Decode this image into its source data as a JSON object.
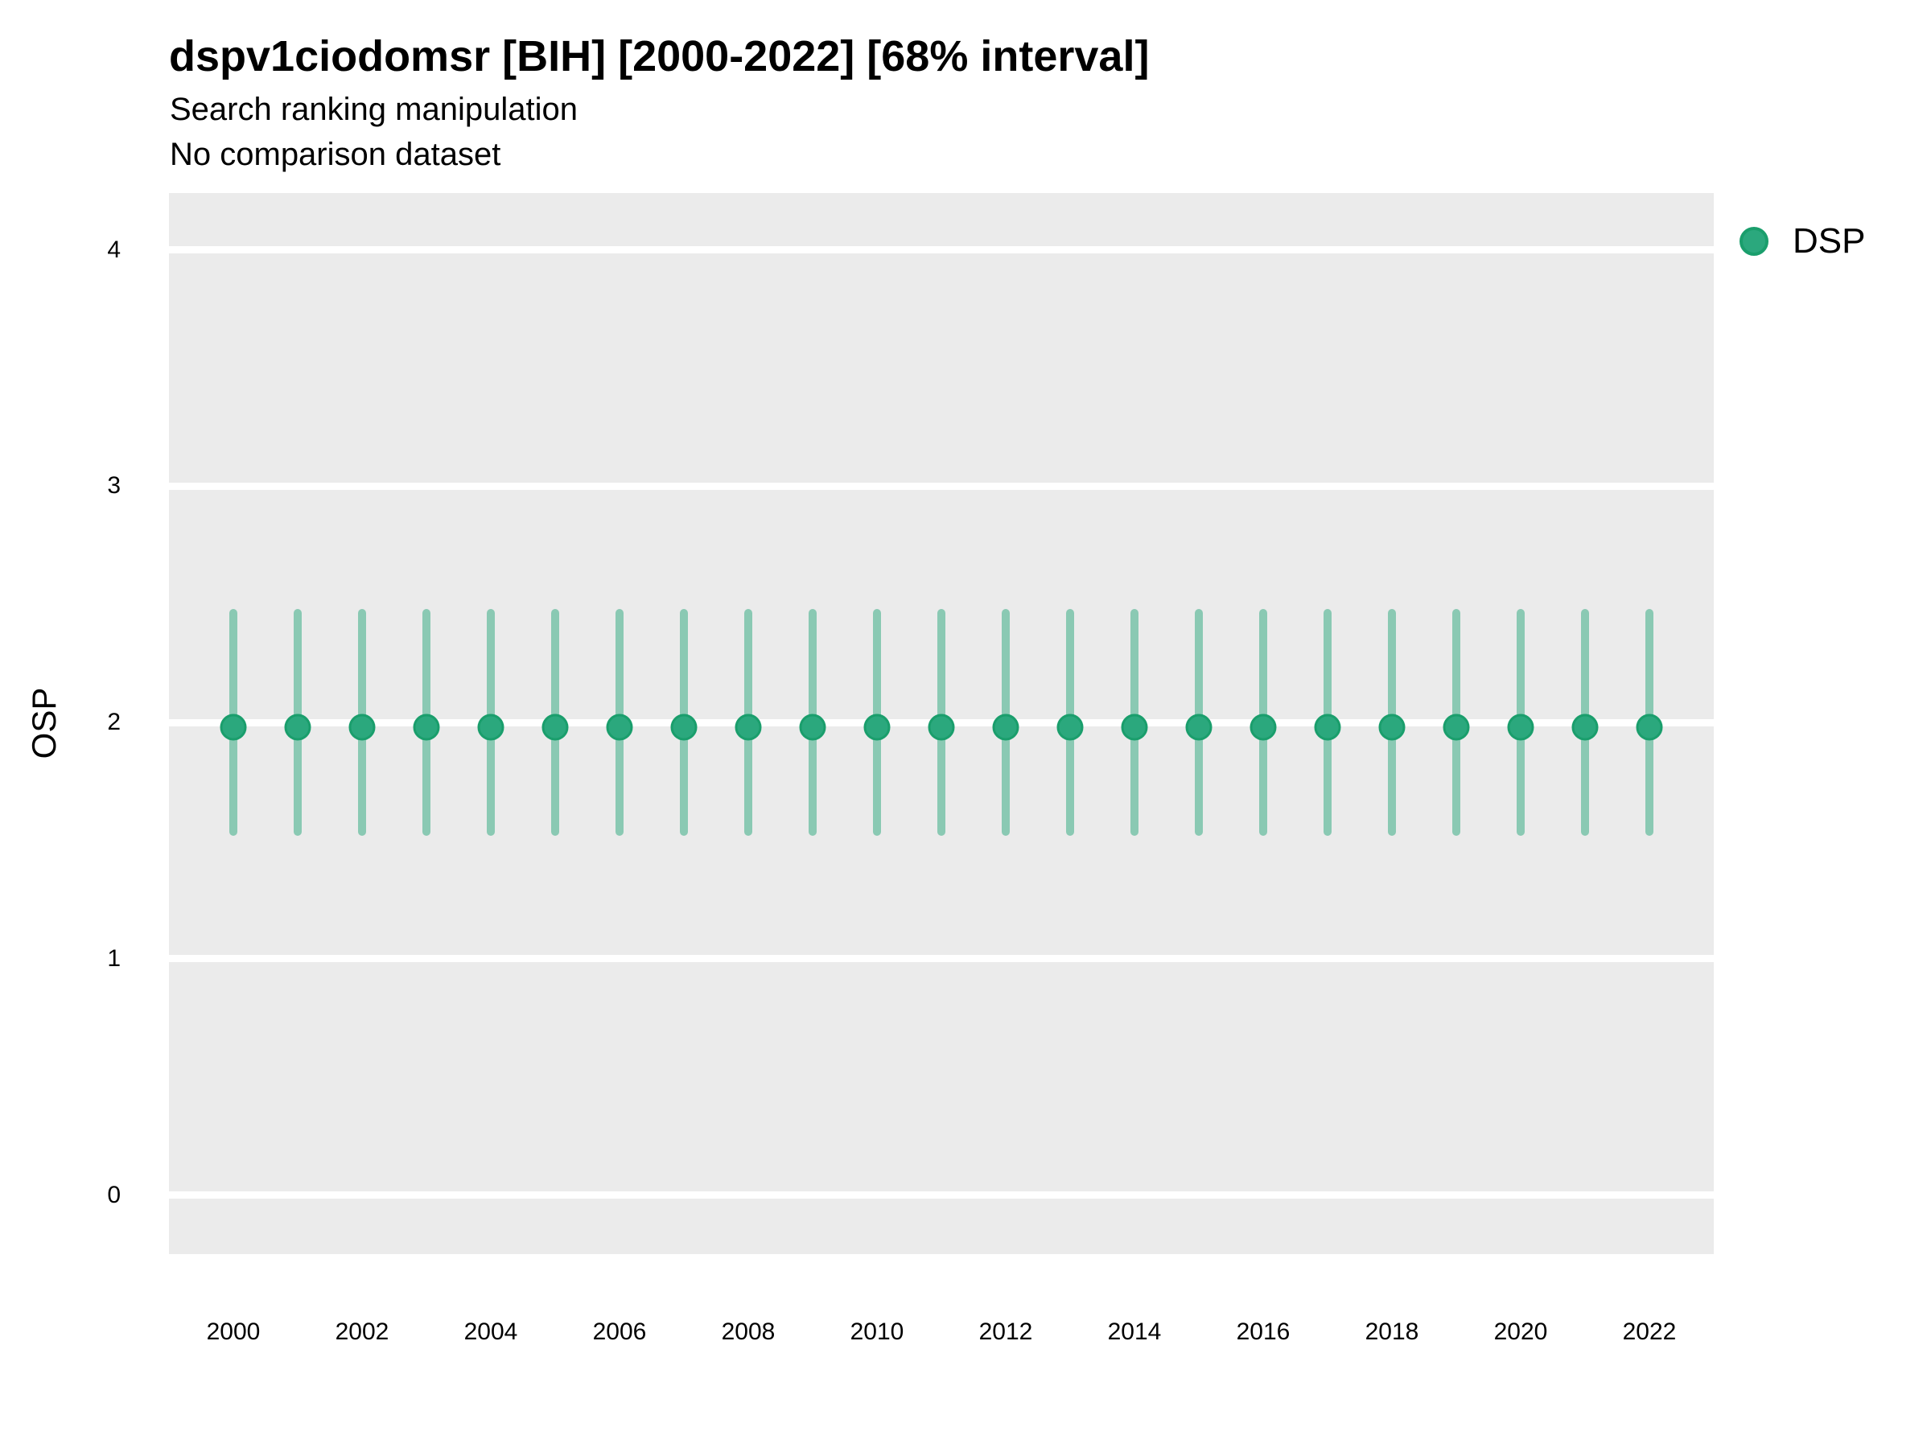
{
  "chart_data": {
    "type": "scatter",
    "title": "dspv1ciodomsr [BIH] [2000-2022] [68% interval]",
    "subtitle": [
      "Search ranking manipulation",
      "No comparison dataset"
    ],
    "xlabel": "",
    "ylabel": "OSP",
    "interval_level": "68%",
    "x": [
      2000,
      2001,
      2002,
      2003,
      2004,
      2005,
      2006,
      2007,
      2008,
      2009,
      2010,
      2011,
      2012,
      2013,
      2014,
      2015,
      2016,
      2017,
      2018,
      2019,
      2020,
      2021,
      2022
    ],
    "series": [
      {
        "name": "DSP",
        "estimate": [
          1.98,
          1.98,
          1.98,
          1.98,
          1.98,
          1.98,
          1.98,
          1.98,
          1.98,
          1.98,
          1.98,
          1.98,
          1.98,
          1.98,
          1.98,
          1.98,
          1.98,
          1.98,
          1.98,
          1.98,
          1.98,
          1.98,
          1.98
        ],
        "lower": [
          1.52,
          1.52,
          1.52,
          1.52,
          1.52,
          1.52,
          1.52,
          1.52,
          1.52,
          1.52,
          1.52,
          1.52,
          1.52,
          1.52,
          1.52,
          1.52,
          1.52,
          1.52,
          1.52,
          1.52,
          1.52,
          1.52,
          1.52
        ],
        "upper": [
          2.48,
          2.48,
          2.48,
          2.48,
          2.48,
          2.48,
          2.48,
          2.48,
          2.48,
          2.48,
          2.48,
          2.48,
          2.48,
          2.48,
          2.48,
          2.48,
          2.48,
          2.48,
          2.48,
          2.48,
          2.48,
          2.48,
          2.48
        ]
      }
    ],
    "xticks": [
      2000,
      2002,
      2004,
      2006,
      2008,
      2010,
      2012,
      2014,
      2016,
      2018,
      2020,
      2022
    ],
    "yticks": [
      0,
      1,
      2,
      3,
      4
    ],
    "xlim": [
      1999,
      2023
    ],
    "ylim": [
      -0.25,
      4.24
    ],
    "grid": "horizontal major gridlines only, white on gray panel",
    "legend_position": "right-top",
    "colors": {
      "point_fill": "#2BA87D",
      "point_stroke": "#1A9E6C",
      "errorbar": "#8AC9B3",
      "panel_bg": "#EBEBEB",
      "grid": "#FFFFFF",
      "text": "#000000"
    }
  }
}
